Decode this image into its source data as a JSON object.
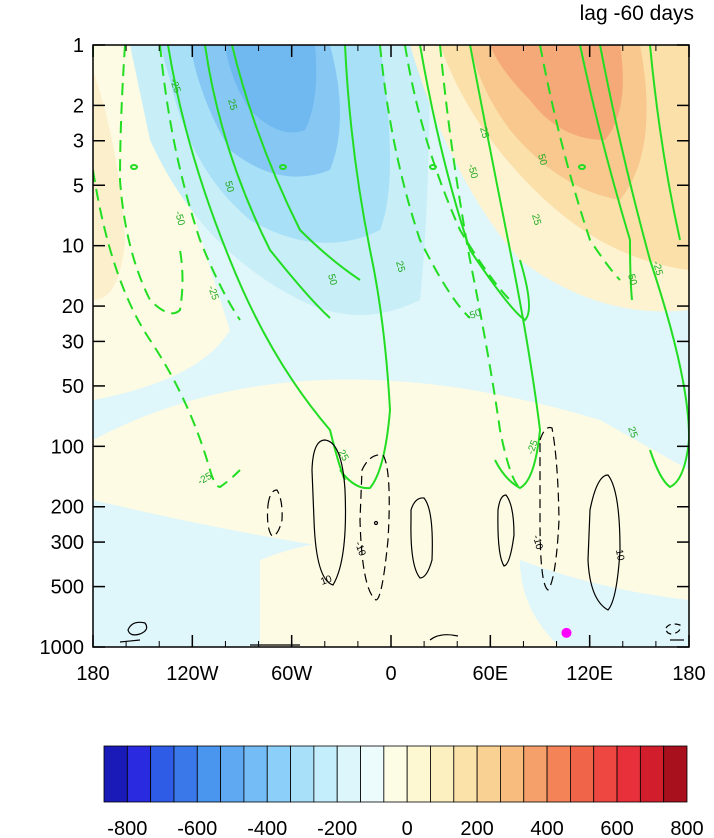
{
  "chart_data": {
    "type": "contour",
    "title": "lag -60 days",
    "x_ticks": [
      "180",
      "120W",
      "60W",
      "0",
      "60E",
      "120E",
      "180"
    ],
    "x_range": [
      -180,
      180
    ],
    "y_ticks": [
      "1",
      "2",
      "3",
      "5",
      "10",
      "20",
      "30",
      "50",
      "100",
      "200",
      "300",
      "500",
      "1000"
    ],
    "y_tick_values": [
      1,
      2,
      3,
      5,
      10,
      20,
      30,
      50,
      100,
      200,
      300,
      500,
      1000
    ],
    "y_scale": "log",
    "y_reversed": true,
    "y_range": [
      1,
      1000
    ],
    "colorbar": {
      "labels": [
        "-800",
        "-600",
        "-400",
        "-200",
        "0",
        "200",
        "400",
        "600",
        "800"
      ],
      "levels": [
        -800,
        800
      ],
      "colors": [
        "#1a1ab8",
        "#2a2ae0",
        "#2f5ce6",
        "#3a78ea",
        "#4a95ee",
        "#5fa8f2",
        "#74bcf5",
        "#8ccff8",
        "#a8e0fa",
        "#c4eefb",
        "#dcf6fb",
        "#ecfbfc",
        "#fdfde6",
        "#fdf7d2",
        "#fcefc0",
        "#fbe2a8",
        "#f9d192",
        "#f7bc7e",
        "#f5a06a",
        "#f48458",
        "#f0644a",
        "#ee4640",
        "#e8303a",
        "#d21e2c",
        "#a8101e"
      ]
    },
    "contour_labels_green": [
      "-25",
      "-50",
      "25",
      "50",
      "-25",
      "-25",
      "25",
      "50",
      "25",
      "-50",
      "-50",
      "25",
      "50",
      "-25",
      "25",
      "50",
      "25",
      "-25"
    ],
    "contour_labels_black": [
      "10",
      "-10",
      "-10",
      "10"
    ],
    "marker": {
      "color": "#ff00ff",
      "x": 106,
      "y": 850
    }
  }
}
